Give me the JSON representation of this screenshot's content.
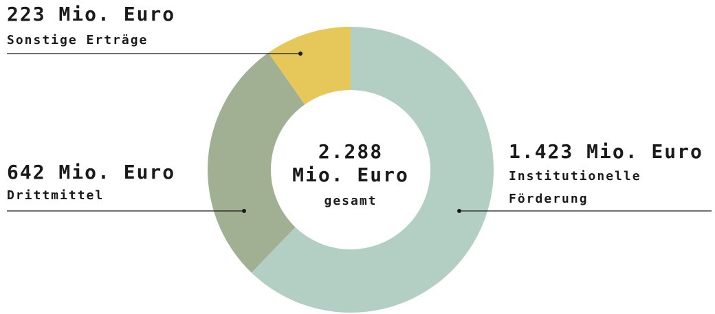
{
  "chart_data": {
    "type": "donut",
    "categories": [
      "Institutionelle Förderung",
      "Drittmittel",
      "Sonstige Erträge"
    ],
    "values": [
      1423,
      642,
      223
    ],
    "value_labels": [
      "1.423 Mio. Euro",
      "642 Mio. Euro",
      "223 Mio. Euro"
    ],
    "colors": [
      "#b3cfc3",
      "#a1b092",
      "#e5c75a"
    ],
    "center_lines": [
      "2.288",
      "Mio. Euro",
      "gesamt"
    ]
  }
}
